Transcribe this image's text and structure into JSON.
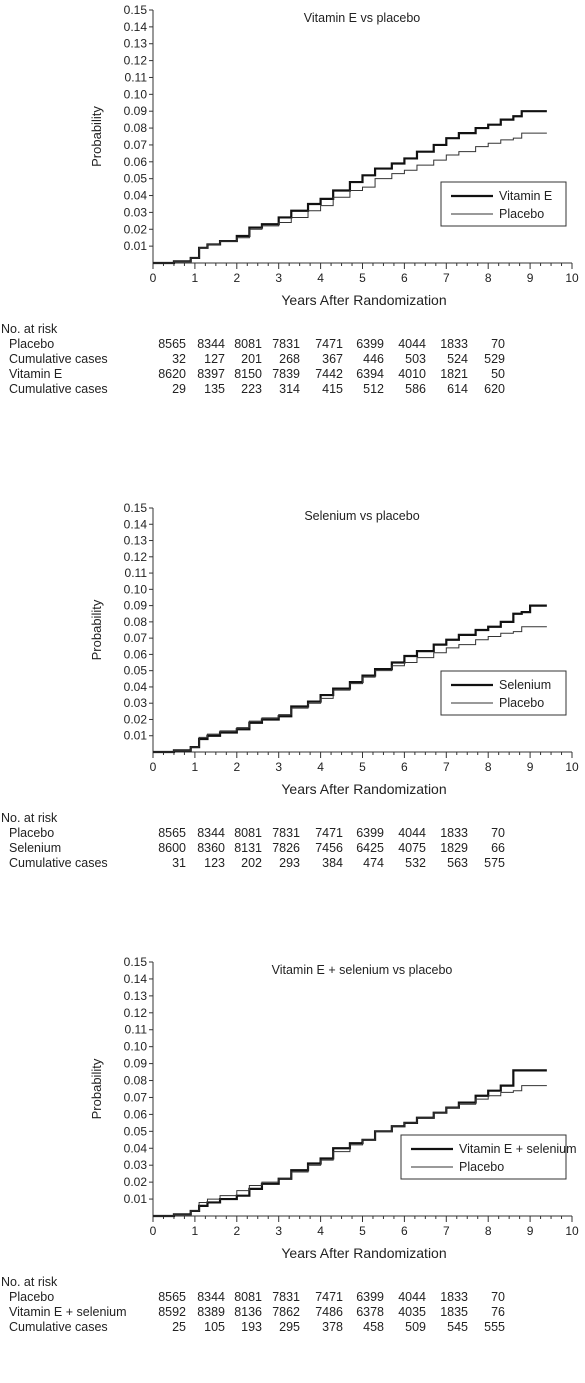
{
  "chart_data": [
    {
      "type": "line",
      "title": "Vitamin E vs placebo",
      "xlabel": "Years After Randomization",
      "ylabel": "Probability",
      "xlim": [
        0,
        10
      ],
      "ylim": [
        0,
        0.15
      ],
      "x_ticks": [
        "0",
        "1",
        "2",
        "3",
        "4",
        "5",
        "6",
        "7",
        "8",
        "9",
        "10"
      ],
      "y_ticks": [
        "0.01",
        "0.02",
        "0.03",
        "0.04",
        "0.05",
        "0.06",
        "0.07",
        "0.08",
        "0.09",
        "0.10",
        "0.11",
        "0.12",
        "0.13",
        "0.14",
        "0.15"
      ],
      "legend_position": "bottom-right",
      "series": [
        {
          "name": "Vitamin E",
          "style": "thick",
          "x": [
            0,
            0.5,
            0.9,
            1.1,
            1.3,
            1.6,
            2.0,
            2.3,
            2.6,
            3.0,
            3.3,
            3.7,
            4.0,
            4.3,
            4.7,
            5.0,
            5.3,
            5.7,
            6.0,
            6.3,
            6.7,
            7.0,
            7.3,
            7.7,
            8.0,
            8.3,
            8.6,
            8.8,
            9.0,
            9.4
          ],
          "y": [
            0,
            0.001,
            0.003,
            0.009,
            0.011,
            0.013,
            0.016,
            0.021,
            0.023,
            0.027,
            0.031,
            0.035,
            0.038,
            0.043,
            0.048,
            0.052,
            0.056,
            0.059,
            0.062,
            0.066,
            0.07,
            0.074,
            0.077,
            0.08,
            0.082,
            0.085,
            0.087,
            0.09,
            0.09,
            0.09
          ]
        },
        {
          "name": "Placebo",
          "style": "thin",
          "x": [
            0,
            0.5,
            0.9,
            1.1,
            1.3,
            1.6,
            2.0,
            2.3,
            2.6,
            3.0,
            3.3,
            3.7,
            4.0,
            4.3,
            4.7,
            5.0,
            5.3,
            5.7,
            6.0,
            6.3,
            6.7,
            7.0,
            7.3,
            7.7,
            8.0,
            8.3,
            8.6,
            8.8,
            9.0,
            9.4
          ],
          "y": [
            0,
            0.001,
            0.003,
            0.009,
            0.011,
            0.013,
            0.015,
            0.02,
            0.022,
            0.024,
            0.027,
            0.031,
            0.034,
            0.039,
            0.043,
            0.045,
            0.05,
            0.053,
            0.055,
            0.058,
            0.061,
            0.064,
            0.066,
            0.069,
            0.071,
            0.073,
            0.074,
            0.077,
            0.077,
            0.077
          ]
        }
      ],
      "risk_table": {
        "header": "No. at risk",
        "rows": [
          {
            "label": "Placebo",
            "values": [
              "8565",
              "8344",
              "8081",
              "7831",
              "7471",
              "6399",
              "4044",
              "1833",
              "70"
            ]
          },
          {
            "label": "Cumulative cases",
            "values": [
              "32",
              "127",
              "201",
              "268",
              "367",
              "446",
              "503",
              "524",
              "529"
            ]
          },
          {
            "label": "Vitamin E",
            "values": [
              "8620",
              "8397",
              "8150",
              "7839",
              "7442",
              "6394",
              "4010",
              "1821",
              "50"
            ]
          },
          {
            "label": "Cumulative cases",
            "values": [
              "29",
              "135",
              "223",
              "314",
              "415",
              "512",
              "586",
              "614",
              "620"
            ]
          }
        ]
      }
    },
    {
      "type": "line",
      "title": "Selenium vs placebo",
      "xlabel": "Years After Randomization",
      "ylabel": "Probability",
      "xlim": [
        0,
        10
      ],
      "ylim": [
        0,
        0.15
      ],
      "x_ticks": [
        "0",
        "1",
        "2",
        "3",
        "4",
        "5",
        "6",
        "7",
        "8",
        "9",
        "10"
      ],
      "y_ticks": [
        "0.01",
        "0.02",
        "0.03",
        "0.04",
        "0.05",
        "0.06",
        "0.07",
        "0.08",
        "0.09",
        "0.10",
        "0.11",
        "0.12",
        "0.13",
        "0.14",
        "0.15"
      ],
      "legend_position": "bottom-right",
      "series": [
        {
          "name": "Selenium",
          "style": "thick",
          "x": [
            0,
            0.5,
            0.9,
            1.1,
            1.3,
            1.6,
            2.0,
            2.3,
            2.6,
            3.0,
            3.3,
            3.7,
            4.0,
            4.3,
            4.7,
            5.0,
            5.3,
            5.7,
            6.0,
            6.3,
            6.7,
            7.0,
            7.3,
            7.7,
            8.0,
            8.3,
            8.6,
            8.8,
            9.0,
            9.4
          ],
          "y": [
            0,
            0.001,
            0.003,
            0.008,
            0.01,
            0.012,
            0.014,
            0.018,
            0.02,
            0.022,
            0.028,
            0.031,
            0.035,
            0.039,
            0.043,
            0.047,
            0.051,
            0.055,
            0.059,
            0.062,
            0.066,
            0.069,
            0.072,
            0.075,
            0.077,
            0.08,
            0.085,
            0.086,
            0.09,
            0.09
          ]
        },
        {
          "name": "Placebo",
          "style": "thin",
          "x": [
            0,
            0.5,
            0.9,
            1.1,
            1.3,
            1.6,
            2.0,
            2.3,
            2.6,
            3.0,
            3.3,
            3.7,
            4.0,
            4.3,
            4.7,
            5.0,
            5.3,
            5.7,
            6.0,
            6.3,
            6.7,
            7.0,
            7.3,
            7.7,
            8.0,
            8.3,
            8.6,
            8.8,
            9.0,
            9.4
          ],
          "y": [
            0,
            0.001,
            0.003,
            0.009,
            0.011,
            0.013,
            0.015,
            0.019,
            0.021,
            0.023,
            0.027,
            0.03,
            0.033,
            0.038,
            0.042,
            0.046,
            0.05,
            0.053,
            0.055,
            0.058,
            0.061,
            0.064,
            0.066,
            0.069,
            0.071,
            0.073,
            0.074,
            0.077,
            0.077,
            0.077
          ]
        }
      ],
      "risk_table": {
        "header": "No. at risk",
        "rows": [
          {
            "label": "Placebo",
            "values": [
              "8565",
              "8344",
              "8081",
              "7831",
              "7471",
              "6399",
              "4044",
              "1833",
              "70"
            ]
          },
          {
            "label": "Selenium",
            "values": [
              "8600",
              "8360",
              "8131",
              "7826",
              "7456",
              "6425",
              "4075",
              "1829",
              "66"
            ]
          },
          {
            "label": "Cumulative cases",
            "values": [
              "31",
              "123",
              "202",
              "293",
              "384",
              "474",
              "532",
              "563",
              "575"
            ]
          }
        ]
      }
    },
    {
      "type": "line",
      "title": "Vitamin E + selenium vs placebo",
      "xlabel": "Years After Randomization",
      "ylabel": "Probability",
      "xlim": [
        0,
        10
      ],
      "ylim": [
        0,
        0.15
      ],
      "x_ticks": [
        "0",
        "1",
        "2",
        "3",
        "4",
        "5",
        "6",
        "7",
        "8",
        "9",
        "10"
      ],
      "y_ticks": [
        "0.01",
        "0.02",
        "0.03",
        "0.04",
        "0.05",
        "0.06",
        "0.07",
        "0.08",
        "0.09",
        "0.10",
        "0.11",
        "0.12",
        "0.13",
        "0.14",
        "0.15"
      ],
      "legend_position": "bottom-right",
      "series": [
        {
          "name": "Vitamin E + selenium",
          "style": "thick",
          "x": [
            0,
            0.5,
            0.9,
            1.1,
            1.3,
            1.6,
            2.0,
            2.3,
            2.6,
            3.0,
            3.3,
            3.7,
            4.0,
            4.3,
            4.7,
            5.0,
            5.3,
            5.7,
            6.0,
            6.3,
            6.7,
            7.0,
            7.3,
            7.7,
            8.0,
            8.3,
            8.6,
            8.8,
            9.0,
            9.4
          ],
          "y": [
            0,
            0.001,
            0.003,
            0.006,
            0.008,
            0.01,
            0.012,
            0.016,
            0.019,
            0.022,
            0.027,
            0.031,
            0.034,
            0.04,
            0.043,
            0.045,
            0.05,
            0.053,
            0.055,
            0.058,
            0.061,
            0.064,
            0.067,
            0.071,
            0.074,
            0.077,
            0.086,
            0.086,
            0.086,
            0.086
          ]
        },
        {
          "name": "Placebo",
          "style": "thin",
          "x": [
            0,
            0.5,
            0.9,
            1.1,
            1.3,
            1.6,
            2.0,
            2.3,
            2.6,
            3.0,
            3.3,
            3.7,
            4.0,
            4.3,
            4.7,
            5.0,
            5.3,
            5.7,
            6.0,
            6.3,
            6.7,
            7.0,
            7.3,
            7.7,
            8.0,
            8.3,
            8.6,
            8.8,
            9.0,
            9.4
          ],
          "y": [
            0,
            0.001,
            0.003,
            0.008,
            0.01,
            0.012,
            0.015,
            0.018,
            0.02,
            0.022,
            0.026,
            0.03,
            0.033,
            0.038,
            0.042,
            0.045,
            0.05,
            0.053,
            0.055,
            0.058,
            0.061,
            0.064,
            0.066,
            0.069,
            0.071,
            0.073,
            0.074,
            0.077,
            0.077,
            0.077
          ]
        }
      ],
      "risk_table": {
        "header": "No. at risk",
        "rows": [
          {
            "label": "Placebo",
            "values": [
              "8565",
              "8344",
              "8081",
              "7831",
              "7471",
              "6399",
              "4044",
              "1833",
              "70"
            ]
          },
          {
            "label": "Vitamin E + selenium",
            "values": [
              "8592",
              "8389",
              "8136",
              "7862",
              "7486",
              "6378",
              "4035",
              "1835",
              "76"
            ]
          },
          {
            "label": "Cumulative cases",
            "values": [
              "25",
              "105",
              "193",
              "295",
              "378",
              "458",
              "509",
              "545",
              "555"
            ]
          }
        ]
      }
    }
  ]
}
